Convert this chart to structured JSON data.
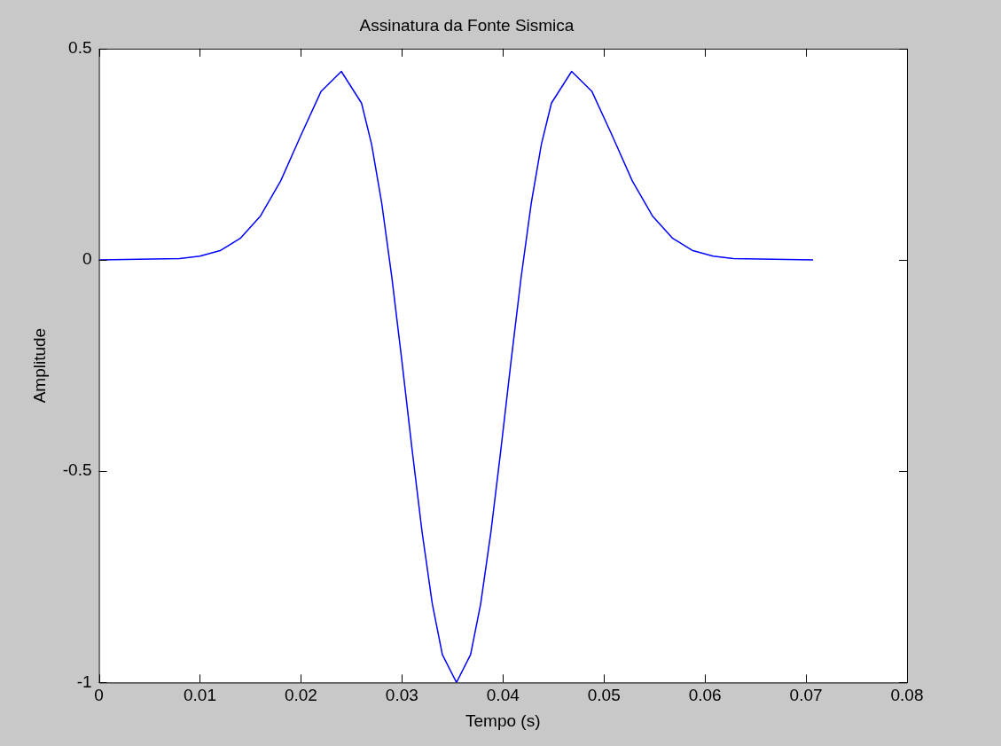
{
  "chart_data": {
    "type": "line",
    "title": "Assinatura da Fonte Sismica",
    "xlabel": "Tempo (s)",
    "ylabel": "Amplitude",
    "series": [
      {
        "color": "#0000ff",
        "x": [
          0,
          0.008,
          0.01,
          0.012,
          0.014,
          0.016,
          0.018,
          0.02,
          0.022,
          0.024,
          0.026,
          0.027,
          0.028,
          0.029,
          0.03,
          0.031,
          0.032,
          0.033,
          0.034,
          0.0354,
          0.0368,
          0.0378,
          0.0388,
          0.0398,
          0.0408,
          0.0418,
          0.0428,
          0.0438,
          0.0448,
          0.0468,
          0.0488,
          0.0508,
          0.0528,
          0.0548,
          0.0568,
          0.0588,
          0.0608,
          0.0628,
          0.0707
        ],
        "values": [
          0,
          0.003,
          0.009,
          0.022,
          0.051,
          0.104,
          0.187,
          0.295,
          0.399,
          0.446,
          0.371,
          0.273,
          0.134,
          -0.041,
          -0.24,
          -0.448,
          -0.645,
          -0.813,
          -0.934,
          -1,
          -0.934,
          -0.813,
          -0.645,
          -0.448,
          -0.24,
          -0.041,
          0.134,
          0.273,
          0.371,
          0.446,
          0.399,
          0.295,
          0.187,
          0.104,
          0.051,
          0.022,
          0.009,
          0.003,
          0
        ]
      }
    ],
    "xlim": [
      0,
      0.08
    ],
    "xticks": [
      0,
      0.01,
      0.02,
      0.03,
      0.04,
      0.05,
      0.06,
      0.07,
      0.08
    ],
    "ylim": [
      -1,
      0.5
    ],
    "yticks": [
      -1,
      -0.5,
      0,
      0.5
    ],
    "grid": false,
    "legend": false,
    "marker": "none",
    "line_style": "solid"
  }
}
